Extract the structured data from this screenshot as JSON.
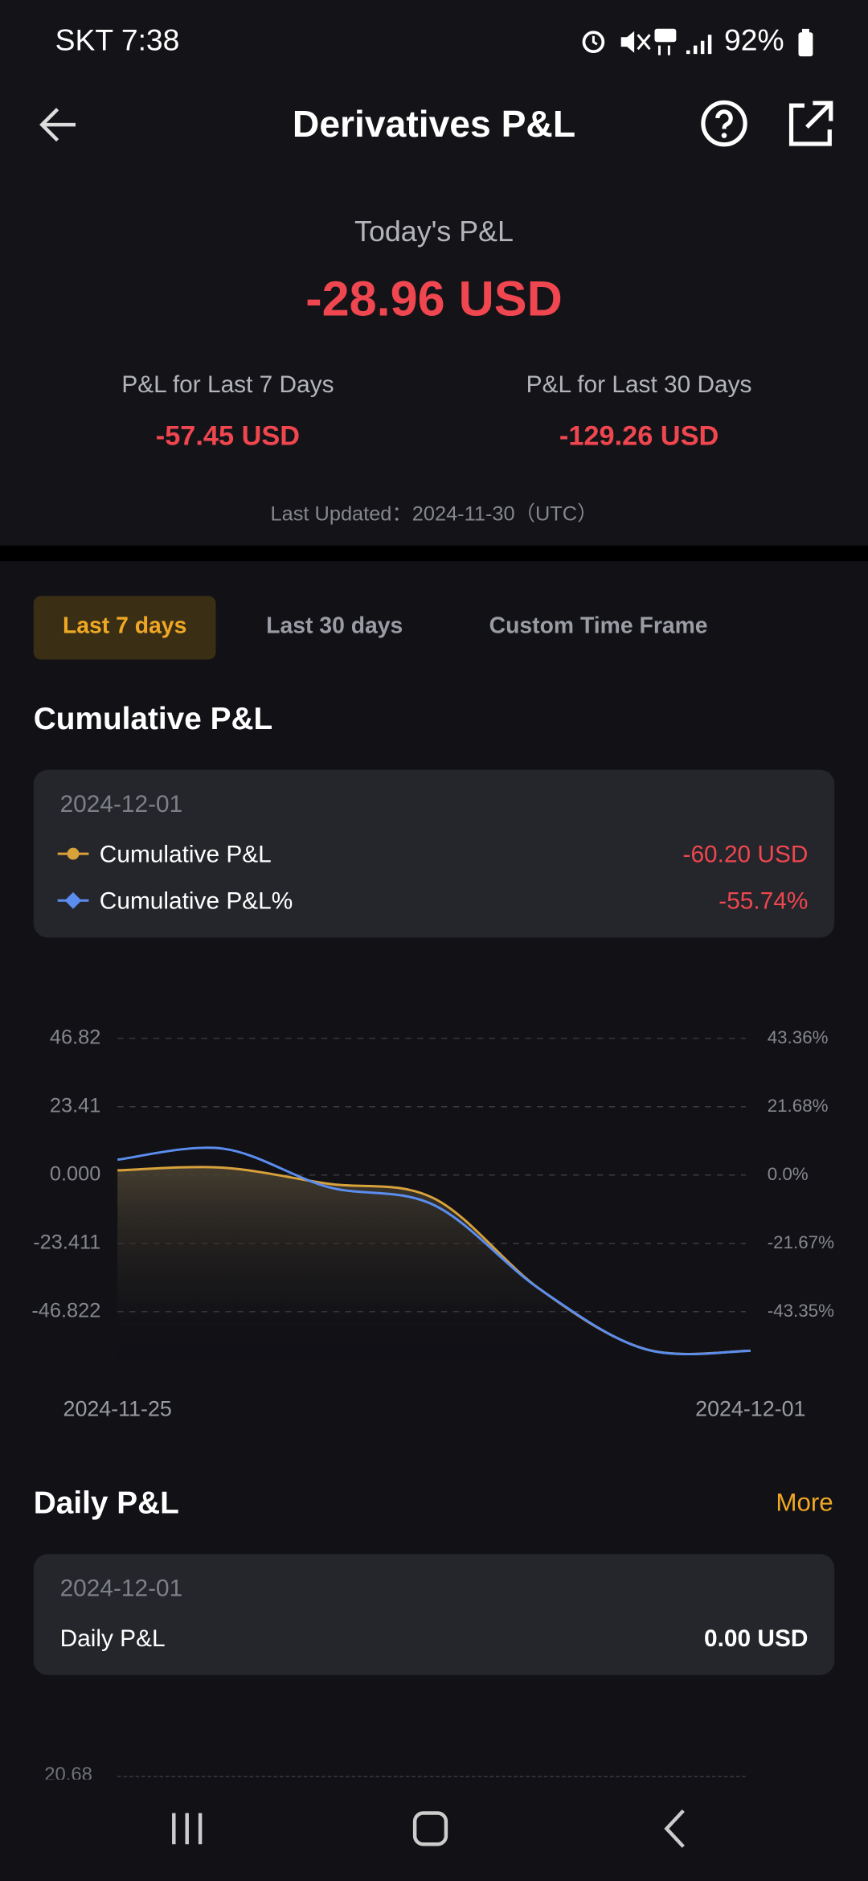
{
  "status_bar": {
    "carrier_time": "SKT 7:38",
    "battery": "92%"
  },
  "header": {
    "title": "Derivatives P&L"
  },
  "summary": {
    "today_label": "Today's P&L",
    "today_value": "-28.96 USD",
    "last7_label": "P&L for Last 7 Days",
    "last7_value": "-57.45 USD",
    "last30_label": "P&L for Last 30 Days",
    "last30_value": "-129.26 USD",
    "last_updated": "Last Updated：2024-11-30（UTC）"
  },
  "tabs": [
    "Last 7 days",
    "Last 30 days",
    "Custom Time Frame"
  ],
  "cumulative": {
    "title": "Cumulative P&L",
    "tooltip": {
      "date": "2024-12-01",
      "values": [
        "-60.20 USD",
        "-55.74%"
      ]
    }
  },
  "chart_data": {
    "type": "line",
    "categories": [
      "2024-11-25",
      null,
      null,
      null,
      null,
      null,
      "2024-12-01"
    ],
    "series": [
      {
        "name": "Cumulative P&L",
        "color": "#d8a13a",
        "values": [
          1.6,
          2.5,
          -3,
          -8,
          -39,
          -59.6,
          -60.2
        ]
      },
      {
        "name": "Cumulative P&L%",
        "color": "#5b8def",
        "axis": "y2",
        "values": [
          4.9,
          8.4,
          -3.8,
          -9.5,
          -36.1,
          -55.2,
          -55.74
        ]
      }
    ],
    "ylim": [
      -63.7,
      51.3
    ],
    "yticks": [
      46.82,
      23.41,
      {
        "value": 0,
        "label": "0.000"
      },
      -23.411,
      -46.822
    ],
    "y2lim": [
      -58.96,
      47.55
    ],
    "y2ticks": [
      {
        "value": 43.36,
        "label": "43.36%"
      },
      {
        "value": 21.68,
        "label": "21.68%"
      },
      {
        "value": 0,
        "label": "0.0%"
      },
      {
        "value": -21.67,
        "label": "-21.67%"
      },
      {
        "value": -43.35,
        "label": "-43.35%"
      }
    ],
    "grid": true
  },
  "daily": {
    "title": "Daily P&L",
    "more": "More",
    "card": {
      "date": "2024-12-01",
      "label": "Daily P&L",
      "value": "0.00 USD"
    },
    "axis_tick": "20.68"
  }
}
